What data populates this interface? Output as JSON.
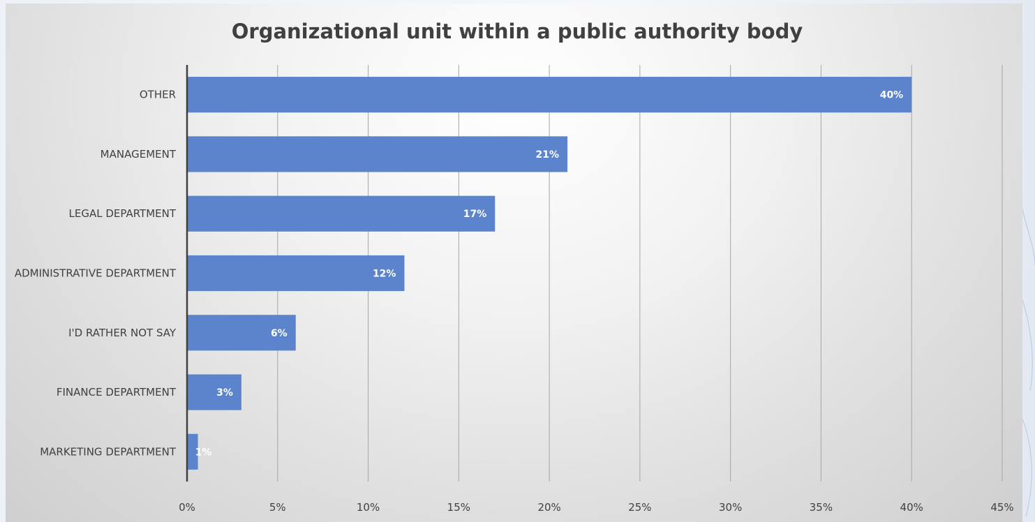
{
  "chart_data": {
    "type": "bar",
    "orientation": "horizontal",
    "title": "Organizational unit within a public authority body",
    "categories": [
      "OTHER",
      "MANAGEMENT",
      "LEGAL DEPARTMENT",
      "ADMINISTRATIVE DEPARTMENT",
      "I'D RATHER NOT SAY",
      "FINANCE DEPARTMENT",
      "MARKETING DEPARTMENT"
    ],
    "values": [
      40,
      21,
      17,
      12,
      6,
      3,
      0.6
    ],
    "data_labels": [
      "40%",
      "21%",
      "17%",
      "12%",
      "6%",
      "3%",
      "1%"
    ],
    "x_ticks": [
      "0%",
      "5%",
      "10%",
      "15%",
      "20%",
      "25%",
      "30%",
      "35%",
      "40%",
      "45%"
    ],
    "xlim": [
      0,
      45
    ],
    "xlabel": "",
    "ylabel": "",
    "grid": "vertical",
    "legend": "none",
    "bar_color": "#5b84cc"
  }
}
